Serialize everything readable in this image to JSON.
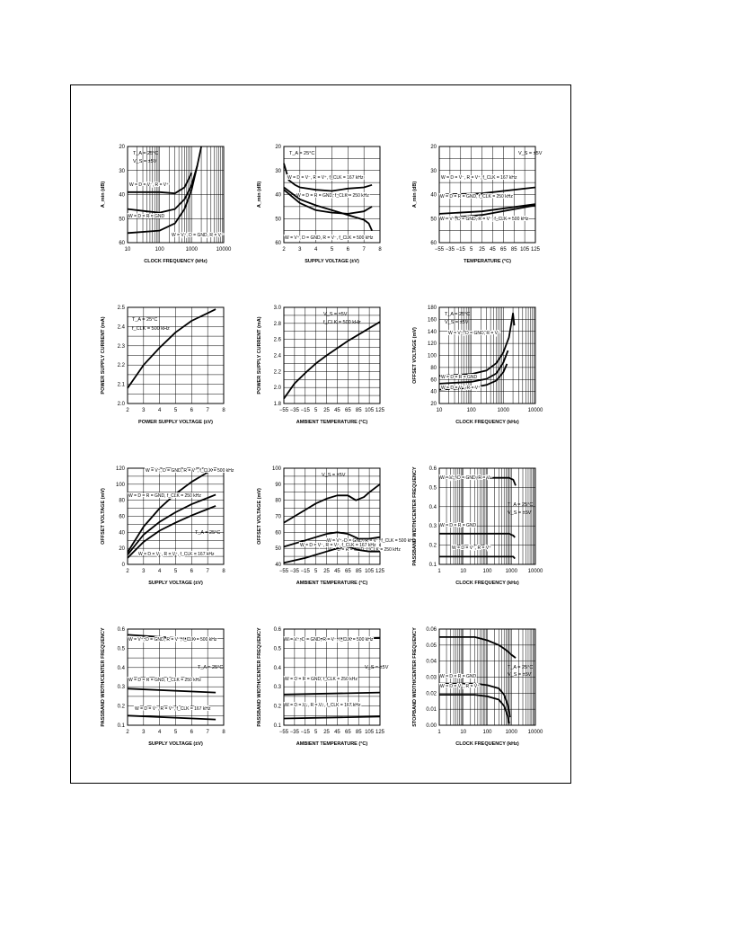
{
  "chart_data": [
    {
      "type": "line",
      "xscale": "log",
      "xlim": [
        10,
        10000
      ],
      "xticks": [
        "10",
        "100",
        "1000",
        "10000"
      ],
      "ylim": [
        20,
        60
      ],
      "yinvert": true,
      "yticks": [
        "20",
        "30",
        "40",
        "50",
        "60"
      ],
      "xlabel": "CLOCK FREQUENCY (kHz)",
      "ylabel": "A_min (dB)",
      "texts": [
        "T_A = 25°C",
        "V_S = ±5V"
      ],
      "series": [
        {
          "name": "W = D = V⁻, R = V⁺",
          "x": [
            10,
            100,
            300,
            600,
            1000
          ],
          "y": [
            39,
            39,
            39.5,
            37,
            31
          ]
        },
        {
          "name": "W = D = R = GND",
          "x": [
            10,
            40,
            100,
            300,
            600,
            1000,
            1500,
            2000
          ],
          "y": [
            46,
            47,
            47.5,
            46,
            42,
            36,
            28,
            20
          ]
        },
        {
          "name": "W = V⁺, D = GND, R = V⁻",
          "x": [
            10,
            100,
            300,
            600,
            1000,
            1500
          ],
          "y": [
            56,
            55,
            52,
            46,
            38,
            28
          ]
        }
      ]
    },
    {
      "type": "line",
      "xlim": [
        2,
        8
      ],
      "xticks": [
        "2",
        "3",
        "4",
        "5",
        "6",
        "7",
        "8"
      ],
      "ylim": [
        20,
        60
      ],
      "yinvert": true,
      "yticks": [
        "20",
        "30",
        "40",
        "50",
        "60"
      ],
      "xlabel": "SUPPLY VOLTAGE (±V)",
      "ylabel": "A_min (dB)",
      "texts": [
        "T_A = 25°C"
      ],
      "series": [
        {
          "name": "W = D = V⁻, R = V⁺, f_CLK = 167 kHz",
          "x": [
            2,
            2.3,
            2.7,
            3,
            4,
            5,
            6,
            7,
            7.5
          ],
          "y": [
            27,
            34,
            36,
            37,
            38,
            38.5,
            37.5,
            37,
            36
          ]
        },
        {
          "name": "W = D = R = GND, f_CLK = 250 kHz",
          "x": [
            2,
            3,
            4,
            5,
            6,
            7,
            7.5
          ],
          "y": [
            38,
            43.5,
            46.5,
            47.5,
            48,
            47,
            45
          ]
        },
        {
          "name": "W = V⁺, D = GND, R = V⁻, f_CLK = 500 kHz",
          "x": [
            2,
            3,
            4,
            5,
            6,
            7,
            7.3,
            7.5
          ],
          "y": [
            37,
            42,
            44.5,
            46.5,
            48.5,
            50.5,
            52,
            55
          ]
        }
      ]
    },
    {
      "type": "line",
      "xlim": [
        -55,
        125
      ],
      "xticks": [
        "−55",
        "−35",
        "−15",
        "5",
        "25",
        "45",
        "65",
        "85",
        "105",
        "125"
      ],
      "ylim": [
        20,
        60
      ],
      "yinvert": true,
      "yticks": [
        "20",
        "30",
        "40",
        "50",
        "60"
      ],
      "xlabel": "TEMPERATURE (°C)",
      "ylabel": "A_min (dB)",
      "texts": [
        "V_S = ±5V"
      ],
      "series": [
        {
          "name": "W = D = V⁻, R = V⁺, f_CLK = 167 kHz",
          "x": [
            -55,
            25,
            125
          ],
          "y": [
            40,
            39.5,
            37
          ]
        },
        {
          "name": "W = D = R = GND, f_CLK = 250 kHz",
          "x": [
            -55,
            25,
            125
          ],
          "y": [
            48,
            47,
            44
          ]
        },
        {
          "name": "W = V⁺, D = GND, R = V⁻, f_CLK = 500 kHz",
          "x": [
            -55,
            25,
            125
          ],
          "y": [
            50,
            48.5,
            44.5
          ]
        }
      ]
    },
    {
      "type": "line",
      "xlim": [
        2,
        8
      ],
      "xticks": [
        "2",
        "3",
        "4",
        "5",
        "6",
        "7",
        "8"
      ],
      "ylim": [
        2.0,
        2.5
      ],
      "yticks": [
        "2.0",
        "2.1",
        "2.2",
        "2.3",
        "2.4",
        "2.5"
      ],
      "xlabel": "POWER SUPPLY VOLTAGE (±V)",
      "ylabel": "POWER SUPPLY CURRENT (mA)",
      "texts": [
        "T_A = 25°C",
        "f_CLK = 500 kHz"
      ],
      "series": [
        {
          "name": "",
          "x": [
            2,
            3,
            4,
            5,
            6,
            7,
            7.5
          ],
          "y": [
            2.08,
            2.2,
            2.29,
            2.37,
            2.43,
            2.47,
            2.49
          ]
        }
      ]
    },
    {
      "type": "line",
      "xlim": [
        -55,
        125
      ],
      "xticks": [
        "−55",
        "−35",
        "−15",
        "5",
        "25",
        "45",
        "65",
        "85",
        "105",
        "125"
      ],
      "ylim": [
        1.8,
        3.0
      ],
      "yticks": [
        "1.8",
        "2.0",
        "2.2",
        "2.4",
        "2.6",
        "2.8",
        "3.0"
      ],
      "xlabel": "AMBIENT TEMPERATURE (°C)",
      "ylabel": "POWER SUPPLY CURRENT (mA)",
      "texts": [
        "V_S = ±5V",
        "f_CLK = 500 kHz"
      ],
      "series": [
        {
          "name": "",
          "x": [
            -55,
            -35,
            -15,
            5,
            25,
            45,
            65,
            85,
            105,
            125
          ],
          "y": [
            1.86,
            2.05,
            2.18,
            2.3,
            2.4,
            2.49,
            2.58,
            2.66,
            2.74,
            2.82
          ]
        }
      ]
    },
    {
      "type": "line",
      "xscale": "log",
      "xlim": [
        10,
        10000
      ],
      "xticks": [
        "10",
        "100",
        "1000",
        "10000"
      ],
      "ylim": [
        20,
        180
      ],
      "yticks": [
        "20",
        "40",
        "60",
        "80",
        "100",
        "120",
        "140",
        "160",
        "180"
      ],
      "xlabel": "CLOCK FREQUENCY (kHz)",
      "ylabel": "OFFSET VOLTAGE (mV)",
      "texts": [
        "T_A = 25°C",
        "V_S = ±5V"
      ],
      "series": [
        {
          "name": "W = V⁺, D = GND, R = V⁻",
          "x": [
            10,
            100,
            300,
            600,
            1000,
            1500,
            1800,
            2000,
            2200
          ],
          "y": [
            66,
            69,
            75,
            87,
            105,
            130,
            155,
            170,
            150
          ]
        },
        {
          "name": "W = D = R = GND",
          "x": [
            10,
            100,
            300,
            600,
            1000,
            1400
          ],
          "y": [
            53,
            56,
            61,
            70,
            88,
            108
          ]
        },
        {
          "name": "W = D = V⁻, R = V⁺",
          "x": [
            10,
            100,
            300,
            600,
            1000,
            1300
          ],
          "y": [
            43,
            46,
            51,
            58,
            72,
            86
          ]
        }
      ]
    },
    {
      "type": "line",
      "xlim": [
        2,
        8
      ],
      "xticks": [
        "2",
        "3",
        "4",
        "5",
        "6",
        "7",
        "8"
      ],
      "ylim": [
        0,
        120
      ],
      "yticks": [
        "0",
        "20",
        "40",
        "60",
        "80",
        "100",
        "120"
      ],
      "xlabel": "SUPPLY VOLTAGE (±V)",
      "ylabel": "OFFSET VOLTAGE (mV)",
      "texts": [
        "T_A = 25°C"
      ],
      "series": [
        {
          "name": "W = V⁺, D = GND, R = V⁻, f_CLK = 500 kHz",
          "x": [
            2,
            3,
            4,
            5,
            6,
            7,
            7.5
          ],
          "y": [
            15,
            47,
            70,
            88,
            103,
            115,
            120
          ]
        },
        {
          "name": "W = D = R = GND, f_CLK = 250 kHz",
          "x": [
            2,
            3,
            4,
            5,
            6,
            7,
            7.5
          ],
          "y": [
            12,
            37,
            53,
            65,
            75,
            83,
            87
          ]
        },
        {
          "name": "W = D = V⁻, R = V⁺, f_CLK = 167 kHz",
          "x": [
            2,
            3,
            4,
            5,
            6,
            7,
            7.5
          ],
          "y": [
            8,
            28,
            42,
            52,
            61,
            69,
            73
          ]
        }
      ]
    },
    {
      "type": "line",
      "xlim": [
        -55,
        125
      ],
      "xticks": [
        "−55",
        "−35",
        "−15",
        "5",
        "25",
        "45",
        "65",
        "85",
        "105",
        "125"
      ],
      "ylim": [
        40,
        100
      ],
      "yticks": [
        "40",
        "50",
        "60",
        "70",
        "80",
        "90",
        "100"
      ],
      "xlabel": "AMBIENT TEMPERATURE (°C)",
      "ylabel": "OFFSET VOLTAGE (mV)",
      "texts": [
        "V_S = ±5V"
      ],
      "series": [
        {
          "name": "W = V⁺, D = GND, R = V⁻, f_CLK = 500 kHz",
          "x": [
            -55,
            -35,
            -15,
            5,
            25,
            45,
            65,
            80,
            95,
            105,
            125
          ],
          "y": [
            66,
            70,
            74,
            78,
            81,
            83,
            83,
            80,
            82,
            85,
            90
          ]
        },
        {
          "name": "W = D = R = GND, f_CLK = 250 kHz",
          "x": [
            -55,
            -15,
            25,
            45,
            65,
            85,
            105,
            125
          ],
          "y": [
            51,
            55,
            59,
            60,
            59,
            56,
            56,
            57
          ]
        },
        {
          "name": "W = D = V⁻, R = V⁺, f_CLK = 167 kHz",
          "x": [
            -55,
            -15,
            25,
            45,
            65,
            85,
            105,
            125
          ],
          "y": [
            41,
            44,
            48,
            50,
            51,
            49,
            48,
            48
          ]
        }
      ]
    },
    {
      "type": "line",
      "xscale": "log",
      "xlim": [
        1,
        10000
      ],
      "xticks": [
        "1",
        "10",
        "100",
        "1000",
        "10000"
      ],
      "ylim": [
        0.1,
        0.6
      ],
      "yticks": [
        "0.1",
        "0.2",
        "0.3",
        "0.4",
        "0.5",
        "0.6"
      ],
      "xlabel": "CLOCK FREQUENCY (kHz)",
      "ylabel": "PASSBAND WIDTH/CENTER FREQUENCY",
      "texts": [
        "T_A = 25°C",
        "V_S = ±5V"
      ],
      "series": [
        {
          "name": "W = V⁺, D = GND, R = V⁻",
          "x": [
            1,
            100,
            800,
            1200,
            1500
          ],
          "y": [
            0.55,
            0.55,
            0.55,
            0.54,
            0.51
          ]
        },
        {
          "name": "W = D = R = GND",
          "x": [
            1,
            100,
            800,
            1200,
            1400
          ],
          "y": [
            0.26,
            0.26,
            0.26,
            0.25,
            0.24
          ]
        },
        {
          "name": "W = D = V⁻, R = V⁺",
          "x": [
            1,
            100,
            800,
            1200,
            1400
          ],
          "y": [
            0.14,
            0.14,
            0.14,
            0.14,
            0.13
          ]
        }
      ]
    },
    {
      "type": "line",
      "xlim": [
        2,
        8
      ],
      "xticks": [
        "2",
        "3",
        "4",
        "5",
        "6",
        "7",
        "8"
      ],
      "ylim": [
        0.1,
        0.6
      ],
      "yticks": [
        "0.1",
        "0.2",
        "0.3",
        "0.4",
        "0.5",
        "0.6"
      ],
      "xlabel": "SUPPLY VOLTAGE (±V)",
      "ylabel": "PASSBAND WIDTH/CENTER FREQUENCY",
      "texts": [
        "T_A = 25°C"
      ],
      "series": [
        {
          "name": "W = V⁺, D = GND, R = V⁻, f_CLK = 500 kHz",
          "x": [
            2,
            7.5
          ],
          "y": [
            0.57,
            0.54
          ]
        },
        {
          "name": "W = D = R = GND, f_CLK = 250 kHz",
          "x": [
            2,
            7.5
          ],
          "y": [
            0.29,
            0.27
          ]
        },
        {
          "name": "W = D = V⁻, R = V⁺, f_CLK = 167 kHz",
          "x": [
            2,
            7.5
          ],
          "y": [
            0.15,
            0.13
          ]
        }
      ]
    },
    {
      "type": "line",
      "xlim": [
        -55,
        125
      ],
      "xticks": [
        "−55",
        "−35",
        "−15",
        "5",
        "25",
        "45",
        "65",
        "85",
        "105",
        "125"
      ],
      "ylim": [
        0.1,
        0.6
      ],
      "yticks": [
        "0.1",
        "0.2",
        "0.3",
        "0.4",
        "0.5",
        "0.6"
      ],
      "xlabel": "AMBIENT TEMPERATURE (°C)",
      "ylabel": "PASSBAND WIDTH/CENTER FREQUENCY",
      "texts": [
        "V_S = ±5V"
      ],
      "series": [
        {
          "name": "W = V⁺, D = GND, R = V⁻, f_CLK = 500 kHz",
          "x": [
            -55,
            125
          ],
          "y": [
            0.545,
            0.555
          ]
        },
        {
          "name": "W = D = R = GND, f_CLK = 250 kHz",
          "x": [
            -55,
            125
          ],
          "y": [
            0.26,
            0.27
          ]
        },
        {
          "name": "W = D = V⁻, R = V⁺, f_CLK = 167 kHz",
          "x": [
            -55,
            125
          ],
          "y": [
            0.135,
            0.145
          ]
        }
      ]
    },
    {
      "type": "line",
      "xscale": "log",
      "xlim": [
        1,
        10000
      ],
      "xticks": [
        "1",
        "10",
        "100",
        "1000",
        "10000"
      ],
      "ylim": [
        0,
        0.06
      ],
      "yticks": [
        "0.00",
        "0.01",
        "0.02",
        "0.03",
        "0.04",
        "0.05",
        "0.06"
      ],
      "xlabel": "CLOCK FREQUENCY (kHz)",
      "ylabel": "STOPBAND WIDTH/CENTER FREQUENCY",
      "texts": [
        "T_A = 25°C",
        "V_S = ±5V"
      ],
      "series": [
        {
          "name": "",
          "x": [
            1,
            30,
            100,
            300,
            600,
            1000,
            1500
          ],
          "y": [
            0.055,
            0.055,
            0.053,
            0.05,
            0.047,
            0.044,
            0.042
          ]
        },
        {
          "name": "W = D = R = GND",
          "x": [
            1,
            30,
            100,
            300,
            500,
            700,
            900
          ],
          "y": [
            0.026,
            0.026,
            0.025,
            0.023,
            0.019,
            0.013,
            0.005
          ]
        },
        {
          "name": "W = D = V⁻, R = V⁺",
          "x": [
            1,
            30,
            100,
            300,
            500,
            700,
            800
          ],
          "y": [
            0.019,
            0.019,
            0.018,
            0.016,
            0.012,
            0.006,
            0.001
          ]
        }
      ]
    }
  ]
}
